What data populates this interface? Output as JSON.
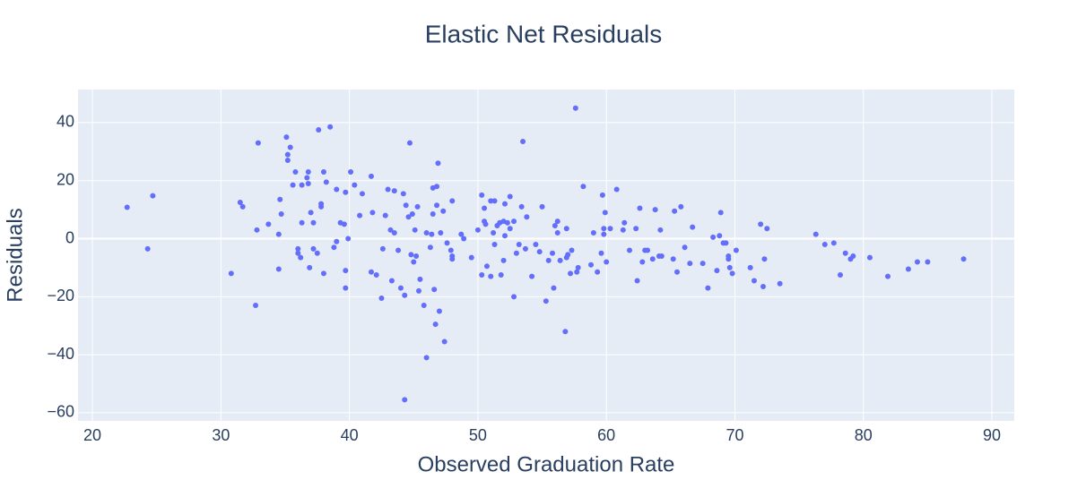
{
  "chart_data": {
    "type": "scatter",
    "title": "Elastic Net Residuals",
    "x_label": "Observed Graduation Rate",
    "y_label": "Residuals",
    "xlim": [
      18.88,
      91.74
    ],
    "ylim": [
      -62.8,
      51.4
    ],
    "xticks": [
      20,
      30,
      40,
      50,
      60,
      70,
      80,
      90
    ],
    "yticks": [
      {
        "value": -60,
        "label": "−60"
      },
      {
        "value": -40,
        "label": "−40"
      },
      {
        "value": -20,
        "label": "−20"
      },
      0,
      20,
      40
    ],
    "grid": true,
    "series": [
      {
        "color": "#636efa",
        "x": [
          22.7,
          24.3,
          24.7,
          30.8,
          31.5,
          31.7,
          32.7,
          32.8,
          32.9,
          33.7,
          34.5,
          34.5,
          34.6,
          34.7,
          35.1,
          35.2,
          35.2,
          35.4,
          35.6,
          35.8,
          36.0,
          36.0,
          36.2,
          36.3,
          36.3,
          36.7,
          36.8,
          36.8,
          36.9,
          37.0,
          37.2,
          37.2,
          37.5,
          37.6,
          37.8,
          37.8,
          38.0,
          38.0,
          38.2,
          38.5,
          38.8,
          39.0,
          39.0,
          39.3,
          39.6,
          39.7,
          39.7,
          39.7,
          39.9,
          40.1,
          40.4,
          40.8,
          41.0,
          41.7,
          41.7,
          41.8,
          42.1,
          42.5,
          42.6,
          42.8,
          43.0,
          43.2,
          43.3,
          43.5,
          43.5,
          43.8,
          44.0,
          44.2,
          44.3,
          44.3,
          44.4,
          44.6,
          44.7,
          44.8,
          44.9,
          45.0,
          45.1,
          45.2,
          45.3,
          45.4,
          45.5,
          45.8,
          46.0,
          46.0,
          46.3,
          46.4,
          46.5,
          46.5,
          46.6,
          46.7,
          46.8,
          46.8,
          46.9,
          47.0,
          47.1,
          47.3,
          47.4,
          47.6,
          47.9,
          48.0,
          48.0,
          48.0,
          48.7,
          48.9,
          49.5,
          50.0,
          50.3,
          50.3,
          50.5,
          50.5,
          50.6,
          50.7,
          51.0,
          51.0,
          51.2,
          51.3,
          51.3,
          51.5,
          51.7,
          51.8,
          52.0,
          52.0,
          52.1,
          52.1,
          52.3,
          52.5,
          52.5,
          52.8,
          52.8,
          53.0,
          53.2,
          53.4,
          53.5,
          53.7,
          53.8,
          54.2,
          54.5,
          54.8,
          55.0,
          55.3,
          55.5,
          55.8,
          55.9,
          56.0,
          56.2,
          56.2,
          56.4,
          56.8,
          56.9,
          56.9,
          57.0,
          57.2,
          57.3,
          57.6,
          57.7,
          57.8,
          58.2,
          58.8,
          59.0,
          59.3,
          59.6,
          59.7,
          59.8,
          59.8,
          59.9,
          60.0,
          60.3,
          60.8,
          61.3,
          61.4,
          61.8,
          62.3,
          62.4,
          62.6,
          62.8,
          63.0,
          63.2,
          63.6,
          63.8,
          64.1,
          64.2,
          64.3,
          65.2,
          65.3,
          65.5,
          65.8,
          66.1,
          66.5,
          66.7,
          67.5,
          67.9,
          68.3,
          68.6,
          68.8,
          68.9,
          69.1,
          69.3,
          69.5,
          69.5,
          69.6,
          69.8,
          70.1,
          71.2,
          71.5,
          72.0,
          72.2,
          72.3,
          72.5,
          73.5,
          76.3,
          77.0,
          77.7,
          78.2,
          78.6,
          79.0,
          79.2,
          80.5,
          81.9,
          83.5,
          84.2,
          85.0,
          87.8
        ],
        "y": [
          10.8,
          -3.5,
          14.8,
          -12,
          12.5,
          11,
          -23,
          3,
          33,
          5,
          -10.5,
          1.5,
          13.5,
          8.5,
          35,
          27,
          29,
          31.5,
          18.5,
          23,
          -3.5,
          -5,
          -6.5,
          18.5,
          5.5,
          21,
          23,
          19,
          -10,
          9,
          -3.5,
          5.5,
          -5,
          37.5,
          12,
          11,
          23,
          -12,
          19.5,
          38.5,
          -3,
          17,
          -1,
          5.5,
          5,
          -11,
          -17,
          16,
          0,
          23,
          18.5,
          8,
          15.5,
          21.5,
          -11.5,
          9,
          -12.5,
          -20.5,
          -3.5,
          8,
          17,
          3,
          -14.5,
          16.5,
          2,
          -4,
          -17,
          15.5,
          -55.5,
          -19.5,
          11.5,
          7.5,
          33,
          -5.5,
          8.5,
          -8,
          3,
          -6,
          11,
          -18,
          -14,
          -23,
          -41,
          2,
          -3,
          1.5,
          8.5,
          17.5,
          -17.5,
          -29.5,
          11.5,
          18,
          26,
          -25,
          2,
          9.5,
          -35.5,
          -1.5,
          -4,
          -6,
          -7,
          13,
          1.5,
          0,
          -6.5,
          3,
          15,
          -12.5,
          10.5,
          6,
          5,
          -9.5,
          -13,
          13,
          2,
          13,
          -2,
          4.5,
          5.5,
          -12.5,
          6,
          -7.5,
          1,
          12,
          5.5,
          3.5,
          14.5,
          6,
          -20,
          -5,
          -2,
          11,
          33.5,
          -3.5,
          7.5,
          -13,
          -2,
          -4.5,
          11,
          -21.5,
          -7.5,
          -5,
          -17,
          4.5,
          6,
          2,
          -7.5,
          -32,
          3.5,
          -6.5,
          -5.5,
          -12,
          -4,
          45,
          -11.5,
          -10,
          18,
          -9,
          2,
          -11.5,
          -5,
          15,
          3.5,
          1.5,
          9,
          -8,
          3.5,
          17,
          3,
          5.5,
          -4,
          3.5,
          -14.5,
          10.5,
          -8,
          -4,
          -4,
          -7,
          10,
          -6,
          3,
          -6,
          -7,
          9.5,
          -11.5,
          11,
          -3,
          -8.5,
          4,
          -8.5,
          -17,
          0.5,
          -11,
          1,
          9,
          -1.5,
          -1.5,
          -6,
          -7,
          -10,
          -12,
          -4,
          -10,
          -14.5,
          5,
          -16.5,
          -7,
          3.5,
          -15.5,
          1.5,
          -2,
          -1.5,
          -12.5,
          -5,
          -7,
          -6,
          -6.5,
          -13,
          -10.5,
          -8,
          -8,
          -7
        ]
      }
    ]
  }
}
